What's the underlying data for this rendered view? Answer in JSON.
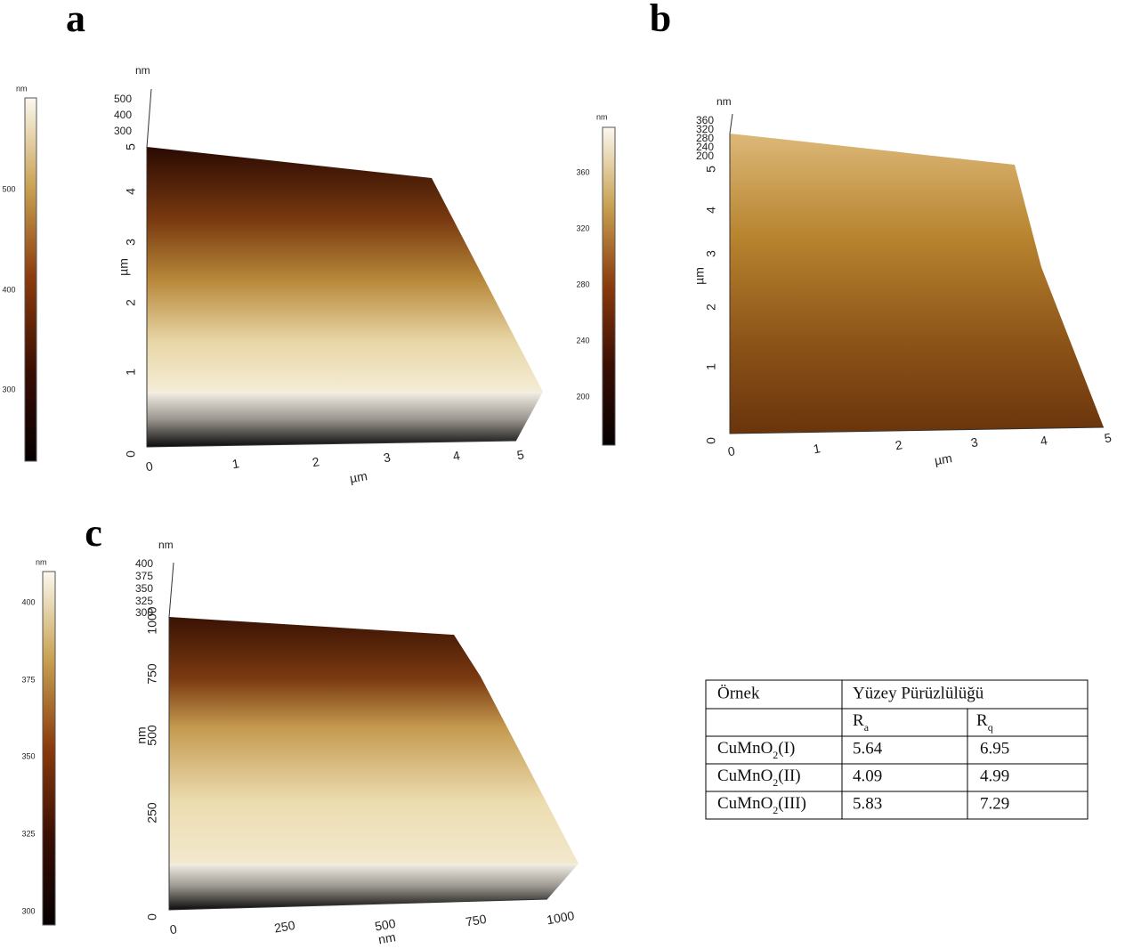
{
  "panels": [
    {
      "label": "a",
      "colorbar": {
        "unit": "nm",
        "ticks": [
          "500",
          "400",
          "300"
        ]
      },
      "z_axis": {
        "unit": "nm",
        "ticks": [
          "500",
          "400",
          "300"
        ]
      },
      "y_axis": {
        "unit": "µm",
        "ticks": [
          "0",
          "1",
          "2",
          "3",
          "4",
          "5"
        ]
      },
      "x_axis": {
        "unit": "µm",
        "ticks": [
          "0",
          "1",
          "2",
          "3",
          "4",
          "5"
        ]
      }
    },
    {
      "label": "b",
      "colorbar": {
        "unit": "nm",
        "ticks": [
          "360",
          "320",
          "280",
          "240",
          "200"
        ]
      },
      "z_axis": {
        "unit": "nm",
        "ticks": [
          "360",
          "320",
          "280",
          "240",
          "200"
        ]
      },
      "y_axis": {
        "unit": "µm",
        "ticks": [
          "0",
          "1",
          "2",
          "3",
          "4",
          "5"
        ]
      },
      "x_axis": {
        "unit": "µm",
        "ticks": [
          "0",
          "1",
          "2",
          "3",
          "4",
          "5"
        ]
      }
    },
    {
      "label": "c",
      "colorbar": {
        "unit": "nm",
        "ticks": [
          "400",
          "375",
          "350",
          "325",
          "300"
        ]
      },
      "z_axis": {
        "unit": "nm",
        "ticks": [
          "400",
          "375",
          "350",
          "325",
          "300"
        ]
      },
      "y_axis": {
        "unit": "nm",
        "ticks": [
          "0",
          "250",
          "500",
          "750",
          "1000"
        ]
      },
      "x_axis": {
        "unit": "nm",
        "ticks": [
          "0",
          "250",
          "500",
          "750",
          "1000"
        ]
      }
    }
  ],
  "table": {
    "header": [
      "Örnek",
      "Yüzey Pürüzlülüğü"
    ],
    "subheader": [
      {
        "base": "R",
        "sub": "a"
      },
      {
        "base": "R",
        "sub": "q"
      }
    ],
    "rows": [
      [
        {
          "base": "CuMnO",
          "sub": "2",
          "suffix": "(I)"
        },
        5.64,
        6.95
      ],
      [
        {
          "base": "CuMnO",
          "sub": "2",
          "suffix": "(II)"
        },
        4.09,
        4.99
      ],
      [
        {
          "base": "CuMnO",
          "sub": "2",
          "suffix": "(III)"
        },
        5.83,
        7.29
      ]
    ]
  }
}
